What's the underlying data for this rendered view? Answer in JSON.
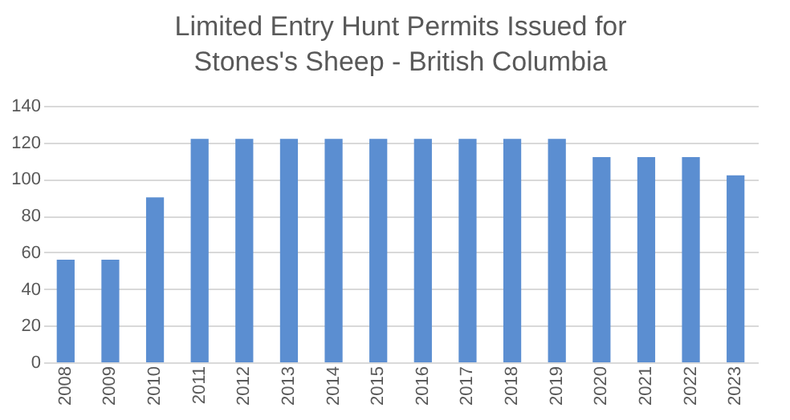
{
  "chart_data": {
    "type": "bar",
    "title": "Limited Entry Hunt Permits Issued for Stones's Sheep - British Columbia",
    "categories": [
      "2008",
      "2009",
      "2010",
      "2011",
      "2012",
      "2013",
      "2014",
      "2015",
      "2016",
      "2017",
      "2018",
      "2019",
      "2020",
      "2021",
      "2022",
      "2023"
    ],
    "values": [
      56,
      56,
      90,
      122,
      122,
      122,
      122,
      122,
      122,
      122,
      122,
      122,
      112,
      112,
      112,
      102
    ],
    "color": "#5b8ed1",
    "ylim": [
      0,
      140
    ],
    "yticks": [
      0,
      20,
      40,
      60,
      80,
      100,
      120,
      140
    ],
    "grid": "y"
  }
}
